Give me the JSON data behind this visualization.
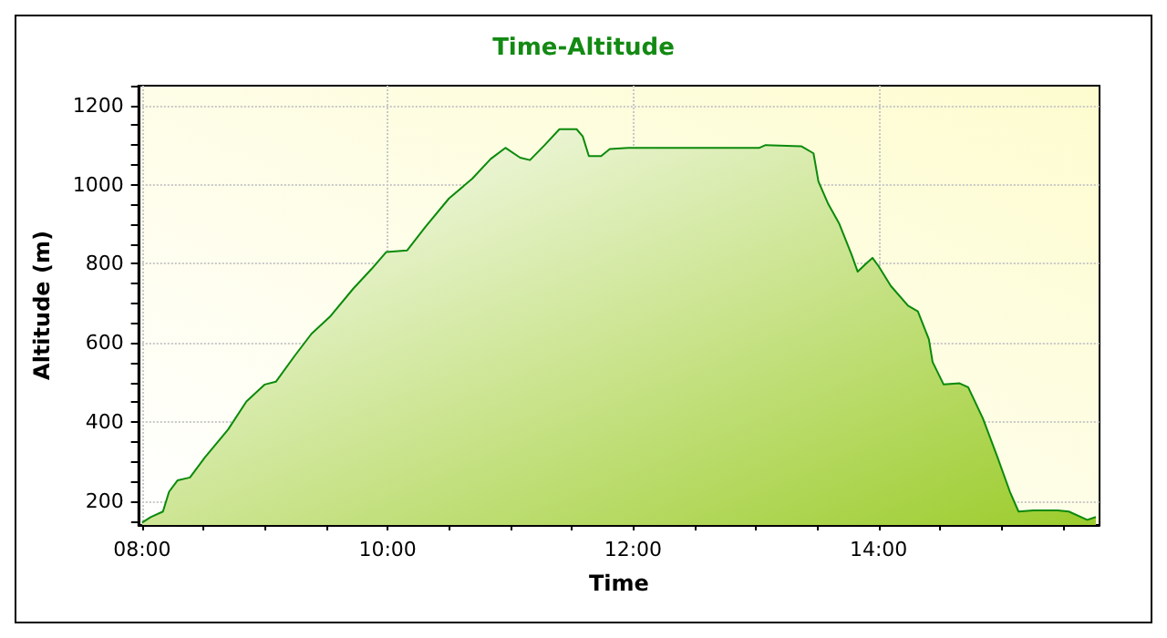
{
  "chart_data": {
    "type": "area",
    "title": "Time-Altitude",
    "xlabel": "Time",
    "ylabel": "Altitude (m)",
    "x": [
      8.0,
      8.07,
      8.17,
      8.22,
      8.29,
      8.39,
      8.51,
      8.7,
      8.85,
      9.0,
      9.09,
      9.24,
      9.38,
      9.53,
      9.72,
      9.87,
      9.99,
      10.16,
      10.31,
      10.5,
      10.69,
      10.84,
      10.96,
      11.08,
      11.16,
      11.28,
      11.4,
      11.54,
      11.59,
      11.64,
      11.74,
      11.81,
      11.96,
      13.03,
      13.08,
      13.37,
      13.47,
      13.51,
      13.59,
      13.68,
      13.78,
      13.83,
      13.9,
      13.95,
      14.0,
      14.1,
      14.24,
      14.32,
      14.41,
      14.44,
      14.53,
      14.66,
      14.73,
      14.85,
      14.97,
      15.07,
      15.14,
      15.26,
      15.46,
      15.55,
      15.7,
      15.77
    ],
    "series": [
      {
        "color": "#0b8a0b",
        "values": [
          146,
          160,
          174,
          224,
          253,
          260,
          310,
          381,
          452,
          495,
          502,
          566,
          623,
          666,
          737,
          787,
          830,
          834,
          894,
          965,
          1015,
          1065,
          1093,
          1068,
          1062,
          1100,
          1140,
          1140,
          1122,
          1072,
          1072,
          1090,
          1093,
          1093,
          1100,
          1097,
          1079,
          1008,
          951,
          901,
          823,
          780,
          801,
          815,
          794,
          744,
          694,
          680,
          609,
          552,
          495,
          498,
          488,
          409,
          310,
          224,
          174,
          177,
          177,
          174,
          153,
          160
        ]
      }
    ],
    "xlim": [
      7.97,
      15.8
    ],
    "xticks": [
      {
        "value": 8,
        "label": "08:00"
      },
      {
        "value": 10,
        "label": "10:00"
      },
      {
        "value": 12,
        "label": "12:00"
      },
      {
        "value": 14,
        "label": "14:00"
      }
    ],
    "ylim": [
      140,
      1250
    ],
    "yticks": [
      200,
      400,
      600,
      800,
      1000,
      1200
    ],
    "grid": true
  }
}
